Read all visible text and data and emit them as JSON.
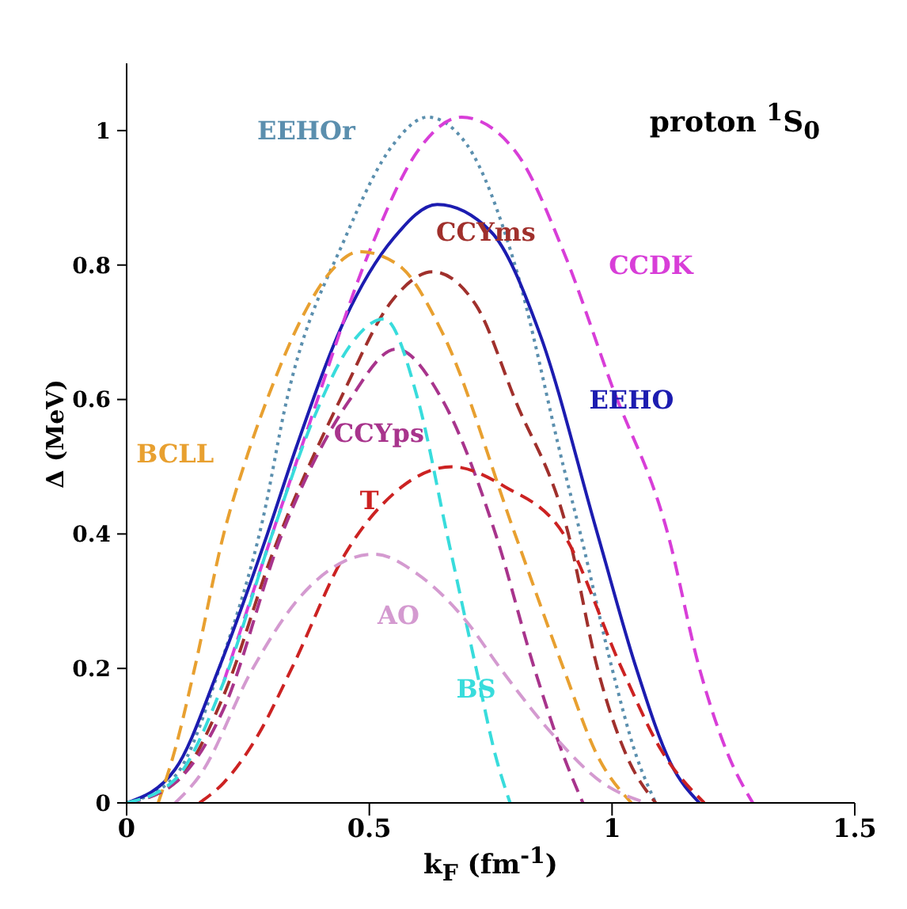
{
  "chart_data": {
    "type": "line",
    "title": "proton $^{1}$S$_{0}$",
    "xlabel": "k$_{F}$ (fm$^{-1}$)",
    "ylabel": "Δ (MeV)",
    "xlim": [
      0,
      1.5
    ],
    "ylim": [
      0,
      1.1
    ],
    "xticks": [
      0,
      0.5,
      1,
      1.5
    ],
    "yticks": [
      0,
      0.2,
      0.4,
      0.6,
      0.8,
      1
    ],
    "grid": false,
    "legend": false,
    "marker": "none",
    "series": [
      {
        "name": "EEHOr",
        "color": "#5b8fae",
        "line_style": "dotted",
        "x": [
          0,
          0.1,
          0.2,
          0.28,
          0.33,
          0.45,
          0.55,
          0.62,
          0.7,
          0.8,
          0.9,
          0.935,
          1.0,
          1.05,
          1.09
        ],
        "values": [
          0,
          0.04,
          0.22,
          0.42,
          0.6,
          0.84,
          0.98,
          1.02,
          0.98,
          0.8,
          0.5,
          0.4,
          0.2,
          0.07,
          0
        ]
      },
      {
        "name": "EEHO",
        "color": "#1c1cb0",
        "line_style": "solid",
        "x": [
          0,
          0.1,
          0.19,
          0.29,
          0.35,
          0.45,
          0.55,
          0.64,
          0.75,
          0.85,
          0.97,
          1.05,
          1.12,
          1.18
        ],
        "values": [
          0,
          0.05,
          0.2,
          0.4,
          0.53,
          0.72,
          0.84,
          0.89,
          0.85,
          0.7,
          0.4,
          0.2,
          0.06,
          0
        ]
      },
      {
        "name": "CCDK",
        "color": "#d83ed8",
        "line_style": "dashed",
        "x": [
          0.2,
          0.3,
          0.37,
          0.5,
          0.6,
          0.69,
          0.8,
          0.9,
          1.0,
          1.115,
          1.18,
          1.24,
          1.29
        ],
        "values": [
          0.18,
          0.4,
          0.55,
          0.82,
          0.97,
          1.02,
          0.97,
          0.82,
          0.62,
          0.4,
          0.2,
          0.07,
          0
        ]
      },
      {
        "name": "BCLL",
        "color": "#e8a030",
        "line_style": "dashed",
        "x": [
          0.065,
          0.1,
          0.14,
          0.2,
          0.25,
          0.3,
          0.36,
          0.42,
          0.48,
          0.56,
          0.65,
          0.8,
          0.9,
          0.97,
          1.04
        ],
        "values": [
          0,
          0.08,
          0.2,
          0.4,
          0.52,
          0.62,
          0.72,
          0.79,
          0.82,
          0.8,
          0.7,
          0.4,
          0.2,
          0.07,
          0
        ]
      },
      {
        "name": "CCYms",
        "color": "#a0302c",
        "line_style": "dashed",
        "x": [
          0,
          0.1,
          0.2,
          0.3,
          0.44,
          0.55,
          0.63,
          0.72,
          0.8,
          0.91,
          0.97,
          1.03,
          1.09
        ],
        "values": [
          0,
          0.03,
          0.16,
          0.37,
          0.6,
          0.75,
          0.79,
          0.74,
          0.6,
          0.4,
          0.2,
          0.07,
          0
        ]
      },
      {
        "name": "CCYps",
        "color": "#a8348c",
        "line_style": "dashed",
        "x": [
          0,
          0.1,
          0.2,
          0.32,
          0.46,
          0.555,
          0.65,
          0.76,
          0.84,
          0.9,
          0.94
        ],
        "values": [
          0,
          0.03,
          0.14,
          0.4,
          0.6,
          0.675,
          0.6,
          0.4,
          0.2,
          0.07,
          0
        ]
      },
      {
        "name": "BS",
        "color": "#38dcdc",
        "line_style": "dashed",
        "x": [
          0,
          0.1,
          0.2,
          0.3,
          0.39,
          0.46,
          0.53,
          0.6,
          0.66,
          0.72,
          0.76,
          0.79
        ],
        "values": [
          0,
          0.035,
          0.18,
          0.4,
          0.58,
          0.68,
          0.72,
          0.6,
          0.4,
          0.2,
          0.07,
          0
        ]
      },
      {
        "name": "T",
        "color": "#cc2222",
        "line_style": "dashed",
        "x": [
          0.15,
          0.2,
          0.27,
          0.34,
          0.45,
          0.55,
          0.67,
          0.78,
          0.9,
          1.02,
          1.1,
          1.19
        ],
        "values": [
          0,
          0.03,
          0.1,
          0.2,
          0.37,
          0.46,
          0.5,
          0.47,
          0.4,
          0.2,
          0.08,
          0
        ]
      },
      {
        "name": "AO",
        "color": "#d49ad0",
        "line_style": "dashed",
        "x": [
          0.1,
          0.15,
          0.26,
          0.35,
          0.45,
          0.51,
          0.6,
          0.7,
          0.77,
          0.88,
          0.98,
          1.07
        ],
        "values": [
          0,
          0.04,
          0.2,
          0.3,
          0.36,
          0.37,
          0.34,
          0.27,
          0.2,
          0.1,
          0.03,
          0
        ]
      }
    ]
  }
}
